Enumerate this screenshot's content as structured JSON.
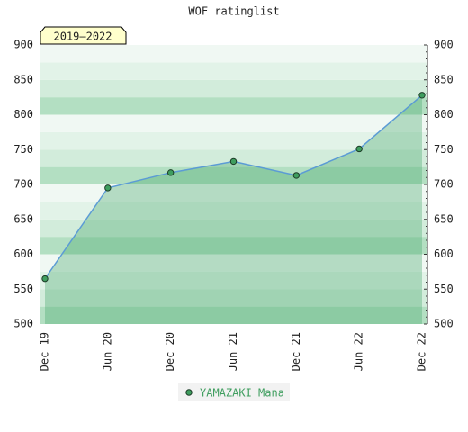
{
  "chart_data": {
    "type": "line",
    "title": "WOF ratinglist",
    "period_label": "2019–2022",
    "categories": [
      "Dec 19",
      "Jun 20",
      "Dec 20",
      "Jun 21",
      "Dec 21",
      "Jun 22",
      "Dec 22"
    ],
    "series": [
      {
        "name": "YAMAZAKI Mana",
        "color": "#5b9bd5",
        "marker_color": "#3f9e5f",
        "values": [
          565,
          695,
          717,
          733,
          713,
          751,
          828
        ]
      }
    ],
    "ylim": [
      500,
      900
    ],
    "yticks": [
      500,
      550,
      600,
      650,
      700,
      750,
      800,
      850,
      900
    ],
    "right_axis": true
  }
}
